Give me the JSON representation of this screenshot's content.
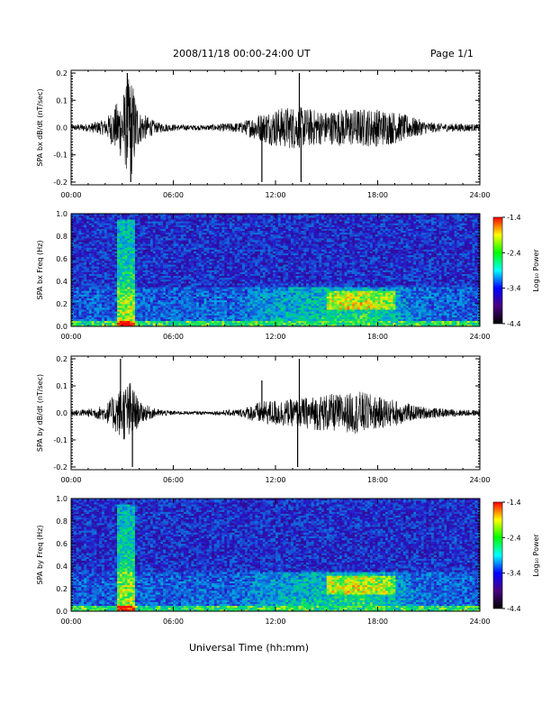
{
  "header": {
    "title": "2008/11/18  00:00-24:00 UT",
    "page": "Page 1/1"
  },
  "x_axis_title": "Universal Time (hh:mm)",
  "colorbar": {
    "label": "Log₁₀ Power",
    "ticks": [
      "-1.4",
      "-2.4",
      "-3.4",
      "-4.4"
    ],
    "colors": [
      "#ff0000",
      "#ffff00",
      "#00ff00",
      "#00ffff",
      "#0000ff",
      "#4b0082",
      "#000000"
    ]
  },
  "chart_data": [
    {
      "type": "line",
      "ylabel": "SPA bx dB/dt (nT/sec)",
      "x_ticks": [
        "00:00",
        "06:00",
        "12:00",
        "18:00",
        "24:00"
      ],
      "y_ticks": [
        "0.2",
        "0.1",
        "0.0",
        "-0.1",
        "-0.2"
      ],
      "xlim": [
        0,
        24
      ],
      "ylim": [
        -0.21,
        0.21
      ],
      "envelope": {
        "x": [
          0,
          1,
          2,
          3,
          3.5,
          4,
          5,
          6,
          7,
          8,
          9,
          10,
          11,
          12,
          13,
          14,
          15,
          16,
          17,
          18,
          19,
          20,
          21,
          22,
          23,
          24
        ],
        "amp": [
          0.01,
          0.015,
          0.03,
          0.12,
          0.2,
          0.06,
          0.02,
          0.012,
          0.01,
          0.01,
          0.015,
          0.02,
          0.05,
          0.07,
          0.08,
          0.07,
          0.06,
          0.07,
          0.07,
          0.07,
          0.06,
          0.04,
          0.02,
          0.015,
          0.015,
          0.012
        ]
      },
      "spikes": [
        {
          "x": 3.3,
          "y": 0.2
        },
        {
          "x": 3.5,
          "y": -0.2
        },
        {
          "x": 11.2,
          "y": -0.2
        },
        {
          "x": 13.5,
          "y": -0.2
        },
        {
          "x": 13.4,
          "y": 0.2
        }
      ]
    },
    {
      "type": "heatmap",
      "ylabel": "SPA bx Freq (Hz)",
      "x_ticks": [
        "00:00",
        "06:00",
        "12:00",
        "18:00",
        "24:00"
      ],
      "y_ticks": [
        "1.0",
        "0.8",
        "0.6",
        "0.4",
        "0.2",
        "0.0"
      ],
      "xlim": [
        0,
        24
      ],
      "ylim": [
        0,
        1
      ],
      "clim": [
        -4.4,
        -1.4
      ]
    },
    {
      "type": "line",
      "ylabel": "SPA by dB/dt (nT/sec)",
      "x_ticks": [
        "00:00",
        "06:00",
        "12:00",
        "18:00",
        "24:00"
      ],
      "y_ticks": [
        "0.2",
        "0.1",
        "0.0",
        "-0.1",
        "-0.2"
      ],
      "xlim": [
        0,
        24
      ],
      "ylim": [
        -0.21,
        0.21
      ],
      "envelope": {
        "x": [
          0,
          1,
          2,
          3,
          3.5,
          4,
          5,
          6,
          7,
          8,
          9,
          10,
          11,
          12,
          13,
          14,
          15,
          16,
          17,
          18,
          19,
          20,
          21,
          22,
          23,
          24
        ],
        "amp": [
          0.01,
          0.015,
          0.03,
          0.1,
          0.12,
          0.04,
          0.015,
          0.008,
          0.006,
          0.006,
          0.01,
          0.015,
          0.04,
          0.05,
          0.05,
          0.06,
          0.07,
          0.07,
          0.08,
          0.06,
          0.05,
          0.03,
          0.02,
          0.015,
          0.012,
          0.01
        ]
      },
      "spikes": [
        {
          "x": 2.9,
          "y": 0.2
        },
        {
          "x": 3.6,
          "y": -0.2
        },
        {
          "x": 11.2,
          "y": 0.12
        },
        {
          "x": 13.4,
          "y": 0.2
        },
        {
          "x": 13.3,
          "y": -0.2
        }
      ]
    },
    {
      "type": "heatmap",
      "ylabel": "SPA by Freq (Hz)",
      "x_ticks": [
        "00:00",
        "06:00",
        "12:00",
        "18:00",
        "24:00"
      ],
      "y_ticks": [
        "1.0",
        "0.8",
        "0.6",
        "0.4",
        "0.2",
        "0.0"
      ],
      "xlim": [
        0,
        24
      ],
      "ylim": [
        0,
        1
      ],
      "clim": [
        -4.4,
        -1.4
      ]
    }
  ]
}
